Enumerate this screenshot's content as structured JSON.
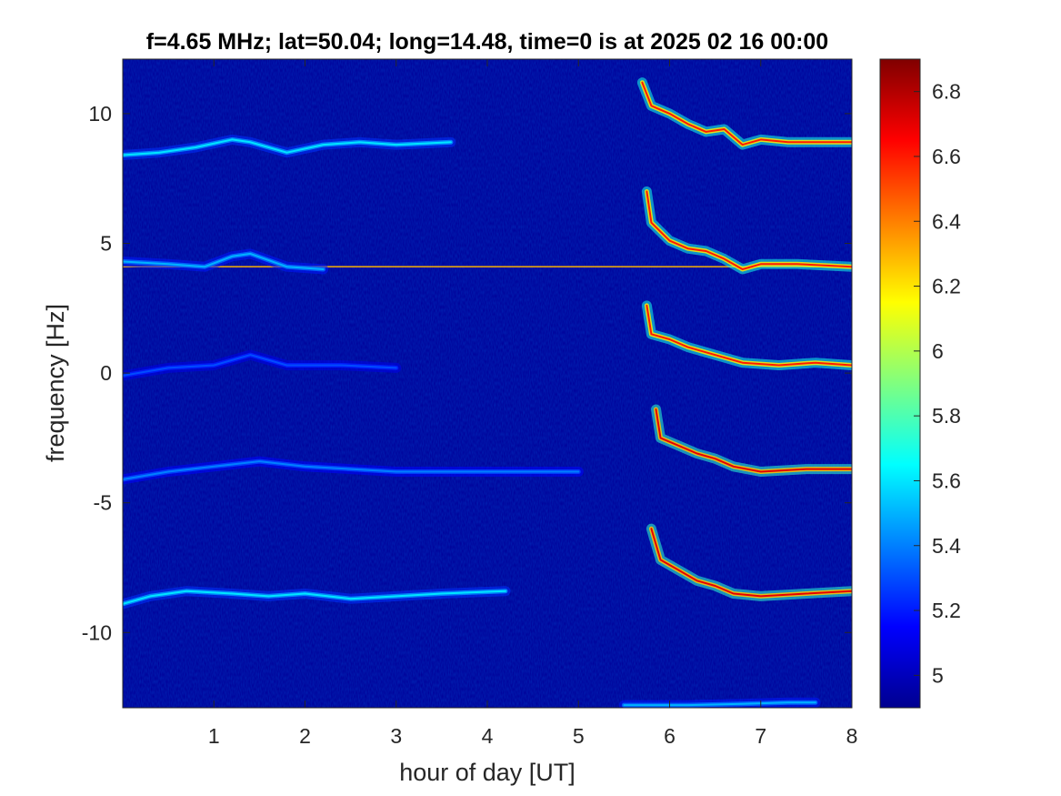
{
  "chart_data": {
    "type": "heatmap",
    "title": "f=4.65 MHz;  lat=50.04; long=14.48, time=0 is at 2025 02 16 00:00",
    "xlabel": "hour of day [UT]",
    "ylabel": "frequency [Hz]",
    "xlim": [
      0,
      8
    ],
    "ylim": [
      -12.9,
      12.1
    ],
    "x_ticks": [
      "1",
      "2",
      "3",
      "4",
      "5",
      "6",
      "7",
      "8"
    ],
    "y_ticks": [
      "-10",
      "-5",
      "0",
      "5",
      "10"
    ],
    "colorbar": {
      "colormap": "jet",
      "range": [
        4.9,
        6.9
      ],
      "ticks": [
        "5",
        "5.2",
        "5.4",
        "5.6",
        "5.8",
        "6",
        "6.2",
        "6.4",
        "6.6",
        "6.8"
      ]
    },
    "background_value": 4.95,
    "constant_lines": [
      {
        "y": 4.1,
        "x_range": [
          0,
          8
        ],
        "value": 6.3
      }
    ],
    "traces": [
      {
        "points": [
          [
            0,
            8.4
          ],
          [
            0.4,
            8.5
          ],
          [
            0.8,
            8.7
          ],
          [
            1.2,
            9.0
          ],
          [
            1.4,
            8.9
          ],
          [
            1.8,
            8.5
          ],
          [
            2.2,
            8.8
          ],
          [
            2.6,
            8.9
          ],
          [
            3.0,
            8.8
          ],
          [
            3.6,
            8.9
          ]
        ],
        "value": 5.6
      },
      {
        "points": [
          [
            0,
            4.3
          ],
          [
            0.5,
            4.2
          ],
          [
            0.9,
            4.1
          ],
          [
            1.2,
            4.5
          ],
          [
            1.4,
            4.6
          ],
          [
            1.8,
            4.1
          ],
          [
            2.2,
            4.0
          ]
        ],
        "value": 5.5
      },
      {
        "points": [
          [
            0,
            -0.1
          ],
          [
            0.5,
            0.2
          ],
          [
            1.0,
            0.3
          ],
          [
            1.4,
            0.7
          ],
          [
            1.8,
            0.3
          ],
          [
            2.4,
            0.3
          ],
          [
            3.0,
            0.2
          ]
        ],
        "value": 5.3
      },
      {
        "points": [
          [
            0,
            -4.1
          ],
          [
            0.5,
            -3.8
          ],
          [
            1.0,
            -3.6
          ],
          [
            1.5,
            -3.4
          ],
          [
            2.0,
            -3.6
          ],
          [
            2.5,
            -3.7
          ],
          [
            3.0,
            -3.8
          ],
          [
            4.0,
            -3.8
          ],
          [
            5.0,
            -3.8
          ]
        ],
        "value": 5.4
      },
      {
        "points": [
          [
            0,
            -8.9
          ],
          [
            0.3,
            -8.6
          ],
          [
            0.7,
            -8.4
          ],
          [
            1.2,
            -8.5
          ],
          [
            1.6,
            -8.6
          ],
          [
            2.0,
            -8.5
          ],
          [
            2.5,
            -8.7
          ],
          [
            3.5,
            -8.5
          ],
          [
            4.2,
            -8.4
          ]
        ],
        "value": 5.6
      },
      {
        "points": [
          [
            5.7,
            11.2
          ],
          [
            5.8,
            10.3
          ],
          [
            6.0,
            10.0
          ],
          [
            6.2,
            9.6
          ],
          [
            6.4,
            9.3
          ],
          [
            6.6,
            9.4
          ],
          [
            6.8,
            8.8
          ],
          [
            7.0,
            9.0
          ],
          [
            7.3,
            8.9
          ],
          [
            7.6,
            8.9
          ],
          [
            8.0,
            8.9
          ]
        ],
        "value": 6.6
      },
      {
        "points": [
          [
            5.75,
            7.0
          ],
          [
            5.8,
            5.8
          ],
          [
            6.0,
            5.1
          ],
          [
            6.2,
            4.8
          ],
          [
            6.4,
            4.7
          ],
          [
            6.6,
            4.4
          ],
          [
            6.8,
            4.0
          ],
          [
            7.0,
            4.2
          ],
          [
            7.4,
            4.2
          ],
          [
            8.0,
            4.1
          ]
        ],
        "value": 6.6
      },
      {
        "points": [
          [
            5.75,
            2.6
          ],
          [
            5.8,
            1.5
          ],
          [
            6.0,
            1.3
          ],
          [
            6.2,
            1.0
          ],
          [
            6.4,
            0.8
          ],
          [
            6.6,
            0.6
          ],
          [
            6.8,
            0.4
          ],
          [
            7.2,
            0.3
          ],
          [
            7.6,
            0.4
          ],
          [
            8.0,
            0.3
          ]
        ],
        "value": 6.6
      },
      {
        "points": [
          [
            5.85,
            -1.4
          ],
          [
            5.9,
            -2.5
          ],
          [
            6.1,
            -2.8
          ],
          [
            6.3,
            -3.1
          ],
          [
            6.5,
            -3.3
          ],
          [
            6.7,
            -3.6
          ],
          [
            7.0,
            -3.8
          ],
          [
            7.5,
            -3.7
          ],
          [
            8.0,
            -3.7
          ]
        ],
        "value": 6.7
      },
      {
        "points": [
          [
            5.8,
            -6.0
          ],
          [
            5.9,
            -7.2
          ],
          [
            6.1,
            -7.6
          ],
          [
            6.3,
            -8.0
          ],
          [
            6.5,
            -8.2
          ],
          [
            6.7,
            -8.5
          ],
          [
            7.0,
            -8.6
          ],
          [
            7.5,
            -8.5
          ],
          [
            8.0,
            -8.4
          ]
        ],
        "value": 6.7
      },
      {
        "points": [
          [
            5.5,
            -12.8
          ],
          [
            6.2,
            -12.8
          ],
          [
            6.8,
            -12.75
          ],
          [
            7.3,
            -12.7
          ],
          [
            7.6,
            -12.7
          ]
        ],
        "value": 5.5
      }
    ]
  }
}
